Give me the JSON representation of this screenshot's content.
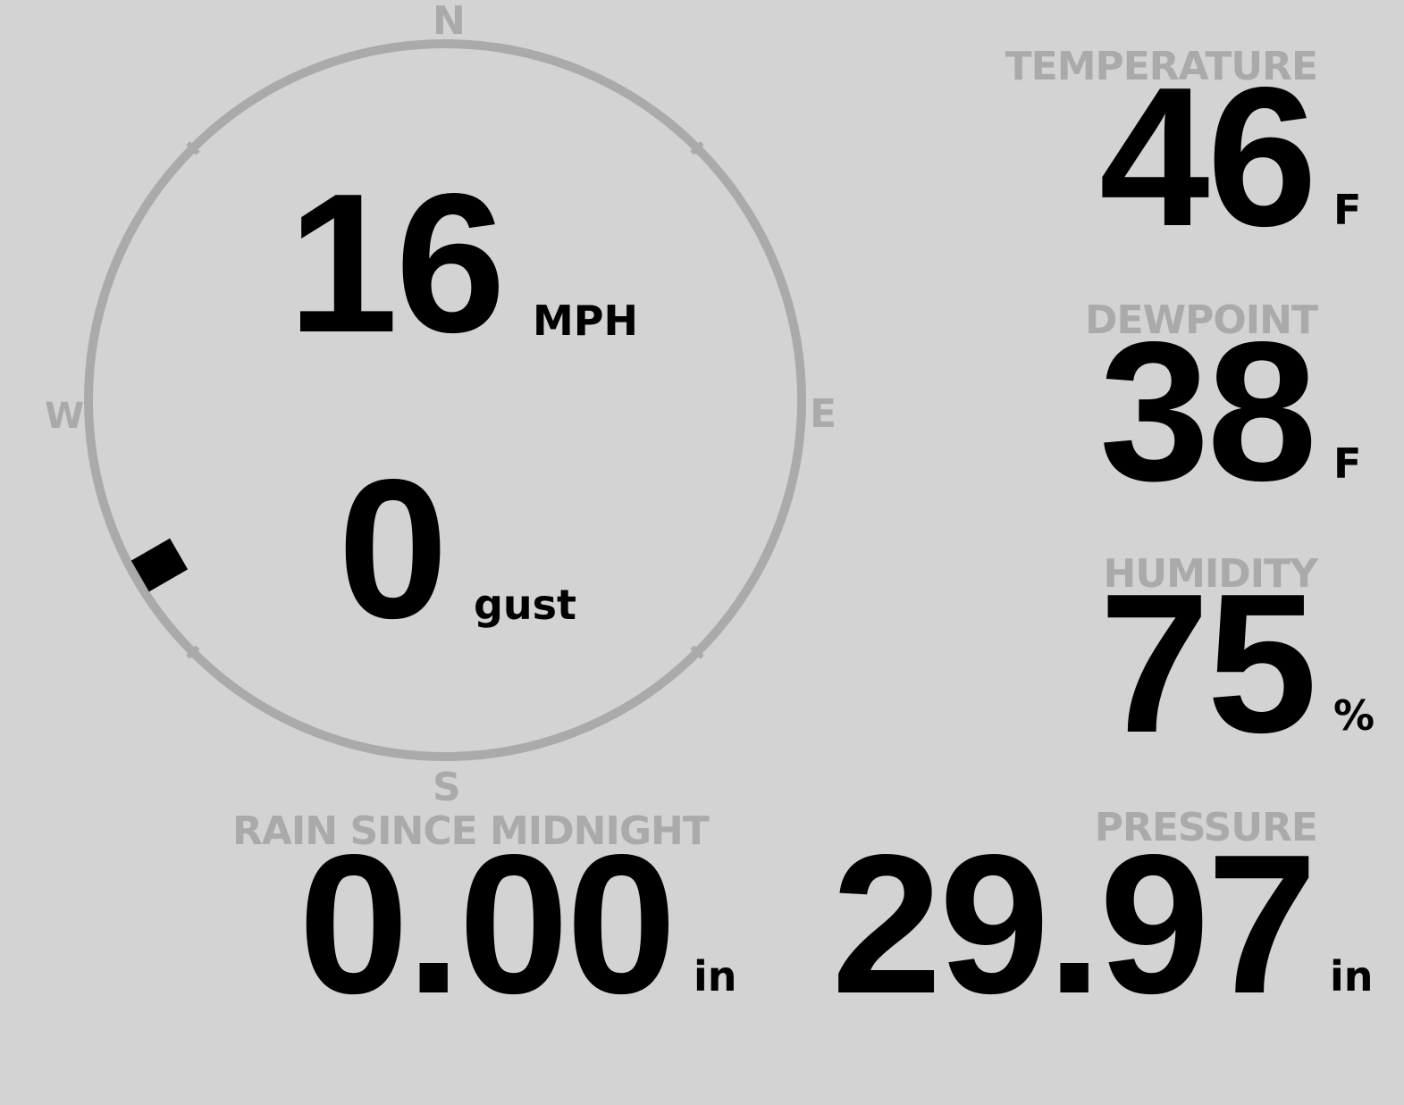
{
  "wind": {
    "speed": "16",
    "speed_unit": "MPH",
    "gust": "0",
    "gust_unit": "gust",
    "direction_deg": 240,
    "compass": {
      "n": "N",
      "e": "E",
      "s": "S",
      "w": "W"
    }
  },
  "temperature": {
    "label": "TEMPERATURE",
    "value": "46",
    "unit": "F"
  },
  "dewpoint": {
    "label": "DEWPOINT",
    "value": "38",
    "unit": "F"
  },
  "humidity": {
    "label": "HUMIDITY",
    "value": "75",
    "unit": "%"
  },
  "rain": {
    "label": "RAIN SINCE MIDNIGHT",
    "value": "0.00",
    "unit": "in"
  },
  "pressure": {
    "label": "PRESSURE",
    "value": "29.97",
    "unit": "in"
  },
  "colors": {
    "background": "#d3d3d3",
    "muted": "#aaaaaa",
    "value": "#000000"
  }
}
